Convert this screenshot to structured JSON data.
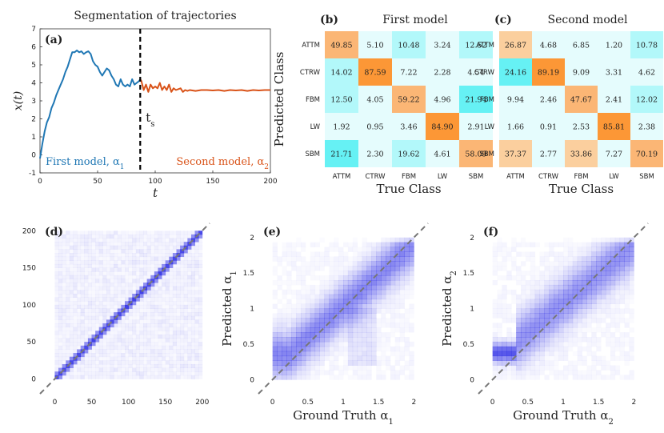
{
  "chart_data": [
    {
      "id": "a",
      "type": "line",
      "panel_label": "(a)",
      "title": "Segmentation of trajectories",
      "xlabel": "t",
      "ylabel": "x(t)",
      "xlim": [
        0,
        200
      ],
      "ylim": [
        -1,
        7
      ],
      "xticks": [
        "0",
        "50",
        "100",
        "150",
        "200"
      ],
      "yticks": [
        "-1",
        "0",
        "1",
        "2",
        "3",
        "4",
        "5",
        "6",
        "7"
      ],
      "switch_point": 87,
      "switch_label": "t",
      "switch_label_sub": "s",
      "colors": {
        "first": "#1f77b4",
        "second": "#d95319"
      },
      "series": [
        {
          "name": "First model",
          "legend_text": "First model, α",
          "legend_sub": "1",
          "x": [
            0,
            2,
            4,
            6,
            8,
            10,
            12,
            14,
            16,
            18,
            20,
            22,
            24,
            26,
            28,
            30,
            32,
            34,
            36,
            38,
            40,
            42,
            44,
            46,
            48,
            50,
            52,
            54,
            56,
            58,
            60,
            62,
            64,
            66,
            68,
            70,
            72,
            74,
            76,
            78,
            80,
            82,
            84,
            86,
            87
          ],
          "y": [
            -0.2,
            0.6,
            1.3,
            1.8,
            2.1,
            2.6,
            2.9,
            3.3,
            3.6,
            3.9,
            4.2,
            4.6,
            4.9,
            5.3,
            5.7,
            5.7,
            5.8,
            5.7,
            5.75,
            5.6,
            5.7,
            5.75,
            5.6,
            5.2,
            5.0,
            4.9,
            4.6,
            4.4,
            4.6,
            4.8,
            4.7,
            4.4,
            4.2,
            3.9,
            3.8,
            4.2,
            3.9,
            3.8,
            3.9,
            3.8,
            4.2,
            3.9,
            4.0,
            4.1,
            4.2
          ]
        },
        {
          "name": "Second model",
          "legend_text": "Second model, α",
          "legend_sub": "2",
          "x": [
            87,
            88,
            90,
            92,
            94,
            96,
            98,
            100,
            102,
            104,
            106,
            108,
            110,
            112,
            114,
            116,
            118,
            120,
            122,
            124,
            126,
            128,
            130,
            135,
            140,
            145,
            150,
            155,
            160,
            165,
            170,
            175,
            180,
            185,
            190,
            195,
            200
          ],
          "y": [
            4.2,
            4.1,
            3.6,
            3.9,
            3.5,
            3.9,
            3.7,
            3.8,
            3.7,
            4.0,
            3.6,
            3.8,
            3.6,
            3.9,
            3.5,
            3.7,
            3.6,
            3.65,
            3.7,
            3.5,
            3.6,
            3.55,
            3.6,
            3.55,
            3.6,
            3.6,
            3.58,
            3.6,
            3.55,
            3.6,
            3.58,
            3.6,
            3.55,
            3.6,
            3.58,
            3.6,
            3.6
          ]
        }
      ]
    },
    {
      "id": "b",
      "type": "heatmap",
      "panel_label": "(b)",
      "title": "First model",
      "xlabel": "True Class",
      "ylabel": "Predicted Class",
      "categories": [
        "ATTM",
        "CTRW",
        "FBM",
        "LW",
        "SBM"
      ],
      "values": [
        [
          49.85,
          5.1,
          10.48,
          3.24,
          12.52
        ],
        [
          14.02,
          87.59,
          7.22,
          2.28,
          4.54
        ],
        [
          12.5,
          4.05,
          59.22,
          4.96,
          21.94
        ],
        [
          1.92,
          0.95,
          3.46,
          84.9,
          2.91
        ],
        [
          21.71,
          2.3,
          19.62,
          4.61,
          58.09
        ]
      ],
      "labels": [
        [
          "49.85",
          "5.10",
          "10.48",
          "3.24",
          "12.52"
        ],
        [
          "14.02",
          "87.59",
          "7.22",
          "2.28",
          "4.54"
        ],
        [
          "12.50",
          "4.05",
          "59.22",
          "4.96",
          "21.94"
        ],
        [
          "1.92",
          "0.95",
          "3.46",
          "84.90",
          "2.91"
        ],
        [
          "21.71",
          "2.30",
          "19.62",
          "4.61",
          "58.09"
        ]
      ]
    },
    {
      "id": "c",
      "type": "heatmap",
      "panel_label": "(c)",
      "title": "Second model",
      "xlabel": "True Class",
      "ylabel": "",
      "categories": [
        "ATTM",
        "CTRW",
        "FBM",
        "LW",
        "SBM"
      ],
      "values": [
        [
          26.87,
          4.68,
          6.85,
          1.2,
          10.78
        ],
        [
          24.16,
          89.19,
          9.09,
          3.31,
          4.62
        ],
        [
          9.94,
          2.46,
          47.67,
          2.41,
          12.02
        ],
        [
          1.66,
          0.91,
          2.53,
          85.81,
          2.38
        ],
        [
          37.37,
          2.77,
          33.86,
          7.27,
          70.19
        ]
      ],
      "labels": [
        [
          "26.87",
          "4.68",
          "6.85",
          "1.20",
          "10.78"
        ],
        [
          "24.16",
          "89.19",
          "9.09",
          "3.31",
          "4.62"
        ],
        [
          "9.94",
          "2.46",
          "47.67",
          "2.41",
          "12.02"
        ],
        [
          "1.66",
          "0.91",
          "2.53",
          "85.81",
          "2.38"
        ],
        [
          "37.37",
          "2.77",
          "33.86",
          "7.27",
          "70.19"
        ]
      ]
    },
    {
      "id": "d",
      "type": "heatmap",
      "panel_label": "(d)",
      "xlabel": "",
      "ylabel": "",
      "xlim": [
        -20,
        210
      ],
      "ylim": [
        -20,
        210
      ],
      "xticks": [
        "0",
        "50",
        "100",
        "150",
        "200"
      ],
      "yticks": [
        "0",
        "50",
        "100",
        "150",
        "200"
      ],
      "diagonal": "dashed y = x",
      "description_values": "2D histogram of predicted vs true switching point, concentrated on the diagonal"
    },
    {
      "id": "e",
      "type": "heatmap",
      "panel_label": "(e)",
      "xlabel": "Ground Truth α",
      "xlabel_sub": "1",
      "ylabel": "Predicted α",
      "ylabel_sub": "1",
      "xlim": [
        -0.2,
        2.2
      ],
      "ylim": [
        -0.2,
        2.2
      ],
      "xticks": [
        "0",
        "0.5",
        "1",
        "1.5",
        "2"
      ],
      "yticks": [
        "0",
        "0.5",
        "1",
        "1.5",
        "2"
      ],
      "diagonal": "dashed y = x"
    },
    {
      "id": "f",
      "type": "heatmap",
      "panel_label": "(f)",
      "xlabel": "Ground Truth α",
      "xlabel_sub": "2",
      "ylabel": "Predicted α",
      "ylabel_sub": "2",
      "xlim": [
        -0.2,
        2.2
      ],
      "ylim": [
        -0.2,
        2.2
      ],
      "xticks": [
        "0",
        "0.5",
        "1",
        "1.5",
        "2"
      ],
      "yticks": [
        "0",
        "0.5",
        "1",
        "1.5",
        "2"
      ],
      "diagonal": "dashed y = x"
    }
  ]
}
